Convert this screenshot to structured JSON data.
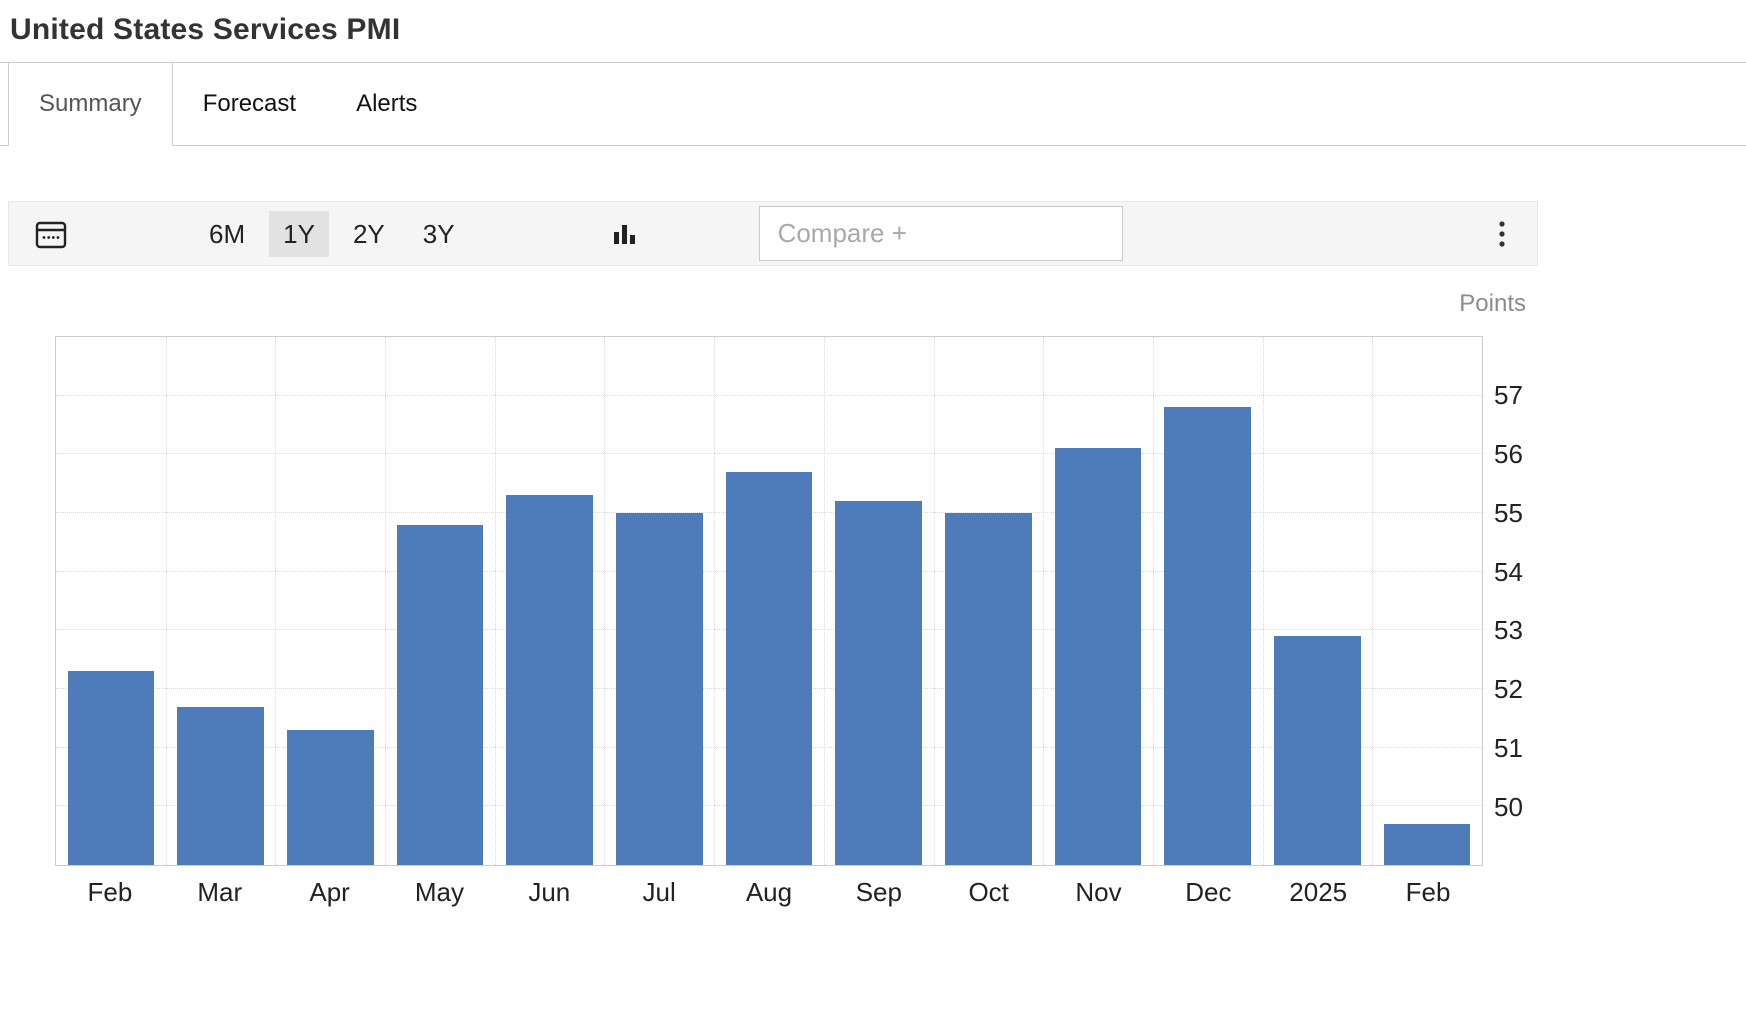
{
  "page": {
    "title": "United States Services PMI"
  },
  "tabs": {
    "items": [
      {
        "label": "Summary",
        "active": true
      },
      {
        "label": "Forecast",
        "active": false
      },
      {
        "label": "Alerts",
        "active": false
      }
    ]
  },
  "toolbar": {
    "ranges": [
      {
        "label": "6M",
        "active": false
      },
      {
        "label": "1Y",
        "active": true
      },
      {
        "label": "2Y",
        "active": false
      },
      {
        "label": "3Y",
        "active": false
      }
    ],
    "compare": {
      "placeholder": "Compare +",
      "value": ""
    },
    "icons": {
      "calendar": "calendar-date-picker",
      "chart_type": "bar-chart-style",
      "menu": "vertical-kebab-dots"
    }
  },
  "chart_data": {
    "type": "bar",
    "title": "United States Services PMI",
    "unit_label": "Points",
    "categories": [
      "Feb",
      "Mar",
      "Apr",
      "May",
      "Jun",
      "Jul",
      "Aug",
      "Sep",
      "Oct",
      "Nov",
      "Dec",
      "2025",
      "Feb"
    ],
    "values": [
      52.3,
      51.7,
      51.3,
      54.8,
      55.3,
      55.0,
      55.7,
      55.2,
      55.0,
      56.1,
      56.8,
      52.9,
      49.7
    ],
    "ylim": [
      49,
      58
    ],
    "yticks": [
      50,
      51,
      52,
      53,
      54,
      55,
      56,
      57
    ],
    "yaxis_position": "right",
    "grid": true,
    "legend": "none",
    "bar_color": "#4e7cbb"
  },
  "colors": {
    "bar": "#4e7cbb",
    "toolbar_bg": "#f5f5f5",
    "active_range_bg": "#e2e2e2",
    "border": "#cccccc",
    "grid": "#d9d9d9"
  }
}
